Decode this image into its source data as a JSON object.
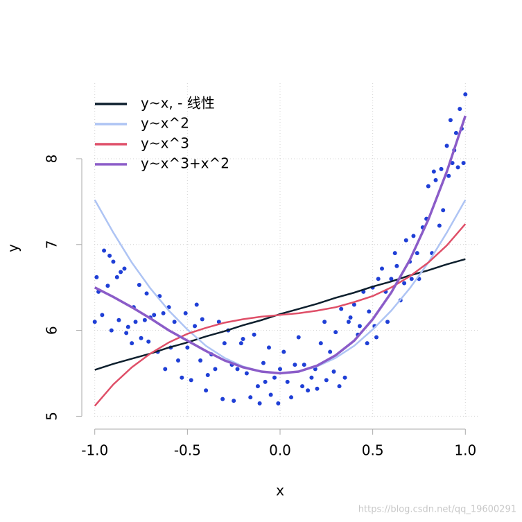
{
  "chart_data": {
    "type": "line",
    "x_label": "x",
    "y_label": "y",
    "xlim": [
      -1.07,
      1.07
    ],
    "ylim": [
      4.85,
      8.88
    ],
    "xticks": [
      {
        "value": -1,
        "label": "-1.0"
      },
      {
        "value": -0.5,
        "label": "-0.5"
      },
      {
        "value": 0,
        "label": "0.0"
      },
      {
        "value": 0.5,
        "label": "0.5"
      },
      {
        "value": 1,
        "label": "1.0"
      }
    ],
    "yticks": [
      5,
      6,
      7,
      8
    ],
    "grid": true,
    "legend": "top-left",
    "x": [
      -1,
      -0.9,
      -0.8,
      -0.7,
      -0.6,
      -0.5,
      -0.4,
      -0.3,
      -0.2,
      -0.1,
      0,
      0.1,
      0.2,
      0.3,
      0.4,
      0.5,
      0.6,
      0.7,
      0.8,
      0.9,
      1
    ],
    "series": [
      {
        "name": "y~x,  - 线性",
        "color": "#0d1f2d",
        "values": [
          5.54,
          5.61,
          5.67,
          5.73,
          5.8,
          5.86,
          5.93,
          5.99,
          6.06,
          6.12,
          6.19,
          6.25,
          6.31,
          6.38,
          6.44,
          6.51,
          6.57,
          6.64,
          6.7,
          6.77,
          6.83
        ]
      },
      {
        "name": "y~x^2",
        "color": "#aec4f4",
        "values": [
          7.52,
          7.14,
          6.79,
          6.49,
          6.23,
          6.01,
          5.82,
          5.68,
          5.58,
          5.52,
          5.5,
          5.52,
          5.58,
          5.68,
          5.82,
          6.01,
          6.23,
          6.49,
          6.79,
          7.14,
          7.52
        ]
      },
      {
        "name": "y~x^3",
        "color": "#df4f68",
        "values": [
          5.12,
          5.37,
          5.57,
          5.73,
          5.86,
          5.96,
          6.03,
          6.09,
          6.13,
          6.16,
          6.18,
          6.2,
          6.23,
          6.27,
          6.33,
          6.4,
          6.5,
          6.63,
          6.79,
          6.99,
          7.24
        ]
      },
      {
        "name": "y~x^3+x^2",
        "color": "#8b5cc8",
        "values": [
          6.5,
          6.39,
          6.27,
          6.14,
          6.0,
          5.88,
          5.76,
          5.65,
          5.57,
          5.52,
          5.5,
          5.52,
          5.59,
          5.71,
          5.88,
          6.13,
          6.44,
          6.82,
          7.29,
          7.85,
          8.5
        ]
      }
    ],
    "scatter": {
      "color": "#1f3fd6",
      "x": [
        -1.0,
        -0.99,
        -0.98,
        -0.96,
        -0.95,
        -0.93,
        -0.92,
        -0.91,
        -0.9,
        -0.88,
        -0.87,
        -0.86,
        -0.84,
        -0.83,
        -0.82,
        -0.8,
        -0.79,
        -0.78,
        -0.76,
        -0.75,
        -0.73,
        -0.72,
        -0.71,
        -0.7,
        -0.68,
        -0.66,
        -0.65,
        -0.63,
        -0.62,
        -0.6,
        -0.59,
        -0.57,
        -0.55,
        -0.53,
        -0.51,
        -0.5,
        -0.48,
        -0.46,
        -0.45,
        -0.43,
        -0.42,
        -0.4,
        -0.39,
        -0.37,
        -0.35,
        -0.33,
        -0.31,
        -0.3,
        -0.28,
        -0.26,
        -0.25,
        -0.23,
        -0.21,
        -0.2,
        -0.18,
        -0.16,
        -0.14,
        -0.12,
        -0.11,
        -0.09,
        -0.08,
        -0.06,
        -0.05,
        -0.03,
        -0.01,
        0.0,
        0.02,
        0.04,
        0.06,
        0.08,
        0.1,
        0.12,
        0.13,
        0.15,
        0.17,
        0.19,
        0.2,
        0.22,
        0.24,
        0.25,
        0.27,
        0.29,
        0.3,
        0.32,
        0.33,
        0.35,
        0.37,
        0.38,
        0.4,
        0.42,
        0.43,
        0.45,
        0.47,
        0.48,
        0.5,
        0.51,
        0.52,
        0.53,
        0.55,
        0.57,
        0.58,
        0.6,
        0.62,
        0.63,
        0.65,
        0.67,
        0.68,
        0.7,
        0.71,
        0.72,
        0.74,
        0.75,
        0.77,
        0.79,
        0.8,
        0.82,
        0.83,
        0.84,
        0.86,
        0.87,
        0.88,
        0.9,
        0.91,
        0.92,
        0.93,
        0.94,
        0.95,
        0.96,
        0.97,
        0.98,
        0.99,
        1.0
      ],
      "y": [
        6.1,
        6.62,
        6.45,
        6.18,
        6.93,
        6.52,
        6.87,
        6.0,
        6.8,
        6.62,
        6.12,
        6.68,
        6.72,
        5.97,
        6.04,
        5.85,
        6.27,
        6.1,
        6.53,
        5.91,
        6.12,
        6.43,
        5.87,
        6.15,
        6.18,
        5.75,
        6.4,
        6.2,
        5.55,
        6.27,
        5.8,
        6.1,
        5.65,
        5.45,
        6.2,
        5.8,
        5.42,
        6.05,
        6.3,
        5.65,
        6.13,
        5.3,
        5.48,
        5.72,
        5.55,
        6.1,
        5.2,
        5.85,
        6.0,
        5.6,
        5.18,
        5.55,
        5.85,
        5.9,
        5.5,
        5.22,
        5.95,
        5.35,
        5.15,
        5.62,
        5.4,
        5.8,
        5.25,
        5.45,
        5.15,
        5.55,
        5.75,
        5.4,
        5.22,
        5.6,
        5.92,
        5.35,
        5.6,
        5.3,
        5.45,
        5.55,
        5.32,
        5.85,
        6.1,
        5.42,
        5.75,
        5.52,
        5.98,
        5.35,
        6.25,
        5.45,
        6.1,
        6.15,
        6.3,
        5.95,
        6.05,
        6.45,
        5.85,
        6.22,
        6.5,
        6.05,
        5.92,
        6.6,
        6.72,
        6.45,
        6.1,
        6.6,
        6.9,
        6.75,
        6.35,
        6.55,
        7.05,
        6.8,
        6.6,
        7.1,
        6.9,
        6.6,
        7.2,
        7.3,
        7.68,
        6.9,
        7.85,
        7.75,
        7.22,
        7.88,
        7.4,
        8.15,
        7.8,
        8.45,
        7.95,
        8.1,
        8.3,
        7.9,
        8.58,
        8.35,
        7.95,
        8.75
      ]
    }
  },
  "watermark": "https://blog.csdn.net/qq_19600291"
}
